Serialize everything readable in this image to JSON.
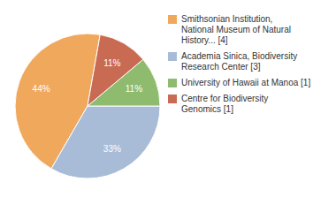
{
  "chart_data": {
    "type": "pie",
    "categories": [
      "Smithsonian Institution,\nNational Museum of Natural\nHistory... [4]",
      "Academia Sinica, Biodiversity\nResearch Center [3]",
      "University of Hawaii at Manoa [1]",
      "Centre for Biodiversity\nGenomics [1]"
    ],
    "values": [
      44,
      33,
      11,
      11
    ],
    "value_labels": [
      "44%",
      "33%",
      "11%",
      "11%"
    ],
    "colors": [
      "#f0a85c",
      "#a8bcd8",
      "#8fbb6e",
      "#c96a52"
    ],
    "data_labels": true,
    "legend": "right"
  }
}
